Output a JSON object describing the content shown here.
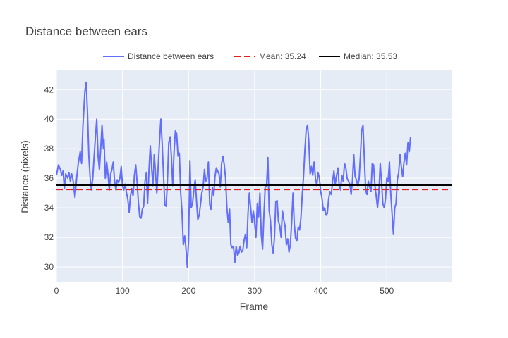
{
  "chart_data": {
    "type": "line",
    "title": "Distance between ears",
    "xlabel": "Frame",
    "ylabel": "Distance (pixels)",
    "xlim": [
      0,
      598
    ],
    "ylim": [
      29.0,
      43.3
    ],
    "x_ticks": [
      0,
      100,
      200,
      300,
      400,
      500
    ],
    "y_ticks": [
      30,
      32,
      34,
      36,
      38,
      40,
      42
    ],
    "grid": true,
    "legend_position": "top-center",
    "series": [
      {
        "name": "Distance between ears",
        "color": "#636efa",
        "kind": "line",
        "points": [
          [
            0,
            36.2
          ],
          [
            3,
            36.9
          ],
          [
            6,
            36.6
          ],
          [
            8,
            36.2
          ],
          [
            10,
            36.5
          ],
          [
            12,
            35.3
          ],
          [
            14,
            36.3
          ],
          [
            17,
            36.0
          ],
          [
            19,
            36.4
          ],
          [
            21,
            35.8
          ],
          [
            23,
            36.3
          ],
          [
            25,
            35.9
          ],
          [
            28,
            34.7
          ],
          [
            31,
            36.2
          ],
          [
            33,
            37.0
          ],
          [
            36,
            37.8
          ],
          [
            38,
            37.0
          ],
          [
            40,
            39.5
          ],
          [
            43,
            41.9
          ],
          [
            45,
            42.5
          ],
          [
            47,
            40.5
          ],
          [
            49,
            37.5
          ],
          [
            51,
            36.0
          ],
          [
            53,
            35.2
          ],
          [
            55,
            36.0
          ],
          [
            57,
            37.5
          ],
          [
            59,
            38.8
          ],
          [
            61,
            40.0
          ],
          [
            63,
            37.5
          ],
          [
            65,
            36.6
          ],
          [
            67,
            38.0
          ],
          [
            69,
            39.6
          ],
          [
            71,
            38.0
          ],
          [
            72,
            38.6
          ],
          [
            74,
            36.0
          ],
          [
            76,
            37.1
          ],
          [
            78,
            36.3
          ],
          [
            80,
            35.2
          ],
          [
            82,
            36.3
          ],
          [
            84,
            36.6
          ],
          [
            86,
            37.1
          ],
          [
            88,
            35.8
          ],
          [
            90,
            35.2
          ],
          [
            92,
            35.9
          ],
          [
            94,
            35.7
          ],
          [
            96,
            36.0
          ],
          [
            98,
            36.8
          ],
          [
            100,
            35.5
          ],
          [
            102,
            35.2
          ],
          [
            104,
            35.6
          ],
          [
            106,
            35.0
          ],
          [
            108,
            34.6
          ],
          [
            110,
            33.7
          ],
          [
            112,
            34.8
          ],
          [
            114,
            35.3
          ],
          [
            116,
            34.8
          ],
          [
            118,
            36.2
          ],
          [
            120,
            36.9
          ],
          [
            122,
            35.8
          ],
          [
            124,
            34.4
          ],
          [
            126,
            33.4
          ],
          [
            128,
            33.3
          ],
          [
            130,
            33.9
          ],
          [
            132,
            34.1
          ],
          [
            134,
            35.8
          ],
          [
            136,
            36.4
          ],
          [
            138,
            34.3
          ],
          [
            140,
            36.5
          ],
          [
            142,
            38.2
          ],
          [
            144,
            36.8
          ],
          [
            146,
            35.5
          ],
          [
            148,
            37.6
          ],
          [
            150,
            36.3
          ],
          [
            152,
            35.0
          ],
          [
            154,
            36.8
          ],
          [
            156,
            38.5
          ],
          [
            158,
            40.0
          ],
          [
            160,
            38.4
          ],
          [
            162,
            36.3
          ],
          [
            164,
            34.2
          ],
          [
            166,
            34.1
          ],
          [
            168,
            35.8
          ],
          [
            170,
            38.4
          ],
          [
            172,
            38.8
          ],
          [
            174,
            37.5
          ],
          [
            176,
            35.5
          ],
          [
            178,
            37.8
          ],
          [
            180,
            39.2
          ],
          [
            182,
            39.0
          ],
          [
            184,
            37.5
          ],
          [
            186,
            37.7
          ],
          [
            188,
            35.0
          ],
          [
            190,
            33.8
          ],
          [
            192,
            31.5
          ],
          [
            194,
            32.1
          ],
          [
            196,
            31.3
          ],
          [
            198,
            30.0
          ],
          [
            200,
            31.8
          ],
          [
            202,
            37.2
          ],
          [
            204,
            34.0
          ],
          [
            206,
            34.3
          ],
          [
            208,
            35.2
          ],
          [
            210,
            35.9
          ],
          [
            212,
            34.5
          ],
          [
            214,
            33.2
          ],
          [
            216,
            33.5
          ],
          [
            218,
            34.2
          ],
          [
            220,
            35.0
          ],
          [
            222,
            35.4
          ],
          [
            224,
            36.6
          ],
          [
            226,
            35.8
          ],
          [
            228,
            36.0
          ],
          [
            230,
            37.1
          ],
          [
            232,
            34.2
          ],
          [
            234,
            33.9
          ],
          [
            236,
            35.4
          ],
          [
            238,
            34.8
          ],
          [
            240,
            36.1
          ],
          [
            242,
            36.7
          ],
          [
            244,
            36.5
          ],
          [
            246,
            36.3
          ],
          [
            248,
            35.4
          ],
          [
            250,
            37.0
          ],
          [
            252,
            37.5
          ],
          [
            254,
            36.9
          ],
          [
            256,
            36.0
          ],
          [
            258,
            34.0
          ],
          [
            260,
            33.0
          ],
          [
            262,
            33.9
          ],
          [
            264,
            31.5
          ],
          [
            266,
            31.3
          ],
          [
            268,
            31.4
          ],
          [
            270,
            30.3
          ],
          [
            272,
            31.4
          ],
          [
            274,
            30.8
          ],
          [
            276,
            30.9
          ],
          [
            278,
            31.4
          ],
          [
            280,
            31.0
          ],
          [
            282,
            31.1
          ],
          [
            284,
            31.8
          ],
          [
            286,
            32.2
          ],
          [
            288,
            31.3
          ],
          [
            290,
            33.7
          ],
          [
            292,
            35.0
          ],
          [
            294,
            34.0
          ],
          [
            296,
            33.0
          ],
          [
            298,
            33.8
          ],
          [
            300,
            33.0
          ],
          [
            302,
            32.0
          ],
          [
            304,
            34.3
          ],
          [
            306,
            33.4
          ],
          [
            308,
            35.0
          ],
          [
            310,
            32.2
          ],
          [
            312,
            31.2
          ],
          [
            314,
            33.5
          ],
          [
            316,
            35.4
          ],
          [
            318,
            35.5
          ],
          [
            320,
            37.4
          ],
          [
            322,
            33.8
          ],
          [
            324,
            33.1
          ],
          [
            326,
            31.5
          ],
          [
            328,
            30.9
          ],
          [
            330,
            32.0
          ],
          [
            332,
            34.4
          ],
          [
            334,
            34.5
          ],
          [
            336,
            33.1
          ],
          [
            338,
            32.8
          ],
          [
            340,
            32.0
          ],
          [
            342,
            33.8
          ],
          [
            344,
            33.2
          ],
          [
            346,
            32.8
          ],
          [
            348,
            31.5
          ],
          [
            350,
            31.9
          ],
          [
            352,
            31.0
          ],
          [
            354,
            31.5
          ],
          [
            356,
            33.0
          ],
          [
            358,
            35.0
          ],
          [
            360,
            32.9
          ],
          [
            362,
            31.9
          ],
          [
            364,
            31.8
          ],
          [
            366,
            32.7
          ],
          [
            368,
            32.5
          ],
          [
            370,
            33.3
          ],
          [
            372,
            34.9
          ],
          [
            374,
            36.1
          ],
          [
            376,
            37.9
          ],
          [
            378,
            39.3
          ],
          [
            380,
            39.6
          ],
          [
            382,
            38.5
          ],
          [
            384,
            36.3
          ],
          [
            386,
            36.8
          ],
          [
            388,
            36.2
          ],
          [
            390,
            37.1
          ],
          [
            392,
            36.0
          ],
          [
            394,
            35.5
          ],
          [
            396,
            36.4
          ],
          [
            398,
            36.0
          ],
          [
            400,
            35.1
          ],
          [
            402,
            34.6
          ],
          [
            404,
            33.8
          ],
          [
            406,
            34.0
          ],
          [
            408,
            33.5
          ],
          [
            410,
            33.6
          ],
          [
            412,
            34.6
          ],
          [
            414,
            35.1
          ],
          [
            416,
            34.9
          ],
          [
            418,
            35.8
          ],
          [
            420,
            36.5
          ],
          [
            422,
            35.6
          ],
          [
            424,
            36.2
          ],
          [
            426,
            36.7
          ],
          [
            428,
            35.5
          ],
          [
            430,
            35.2
          ],
          [
            432,
            36.2
          ],
          [
            434,
            35.8
          ],
          [
            436,
            37.0
          ],
          [
            438,
            36.7
          ],
          [
            440,
            36.0
          ],
          [
            442,
            35.8
          ],
          [
            444,
            35.6
          ],
          [
            446,
            34.9
          ],
          [
            448,
            35.8
          ],
          [
            450,
            37.6
          ],
          [
            452,
            36.1
          ],
          [
            454,
            35.9
          ],
          [
            456,
            35.5
          ],
          [
            458,
            35.9
          ],
          [
            460,
            37.5
          ],
          [
            462,
            39.2
          ],
          [
            464,
            39.6
          ],
          [
            466,
            37.3
          ],
          [
            468,
            35.2
          ],
          [
            470,
            34.9
          ],
          [
            472,
            35.8
          ],
          [
            474,
            35.4
          ],
          [
            476,
            35.1
          ],
          [
            478,
            37.0
          ],
          [
            480,
            36.9
          ],
          [
            482,
            35.5
          ],
          [
            484,
            34.8
          ],
          [
            486,
            34.0
          ],
          [
            488,
            35.0
          ],
          [
            490,
            37.0
          ],
          [
            492,
            35.8
          ],
          [
            494,
            34.3
          ],
          [
            496,
            34.0
          ],
          [
            498,
            34.6
          ],
          [
            500,
            36.0
          ],
          [
            502,
            35.8
          ],
          [
            504,
            37.1
          ],
          [
            506,
            35.0
          ],
          [
            508,
            33.6
          ],
          [
            510,
            32.2
          ],
          [
            512,
            34.0
          ],
          [
            514,
            34.3
          ],
          [
            516,
            35.9
          ],
          [
            518,
            36.4
          ],
          [
            520,
            37.6
          ],
          [
            522,
            36.8
          ],
          [
            524,
            36.1
          ],
          [
            526,
            37.1
          ],
          [
            528,
            37.7
          ],
          [
            530,
            36.9
          ],
          [
            532,
            38.4
          ],
          [
            534,
            37.8
          ],
          [
            536,
            38.8
          ]
        ]
      },
      {
        "name": "Mean: 35.24",
        "color": "#e81c1c",
        "kind": "hline",
        "dash": "dashed",
        "value": 35.24
      },
      {
        "name": "Median: 35.53",
        "color": "#000000",
        "kind": "hline",
        "dash": "solid",
        "value": 35.53
      }
    ]
  }
}
